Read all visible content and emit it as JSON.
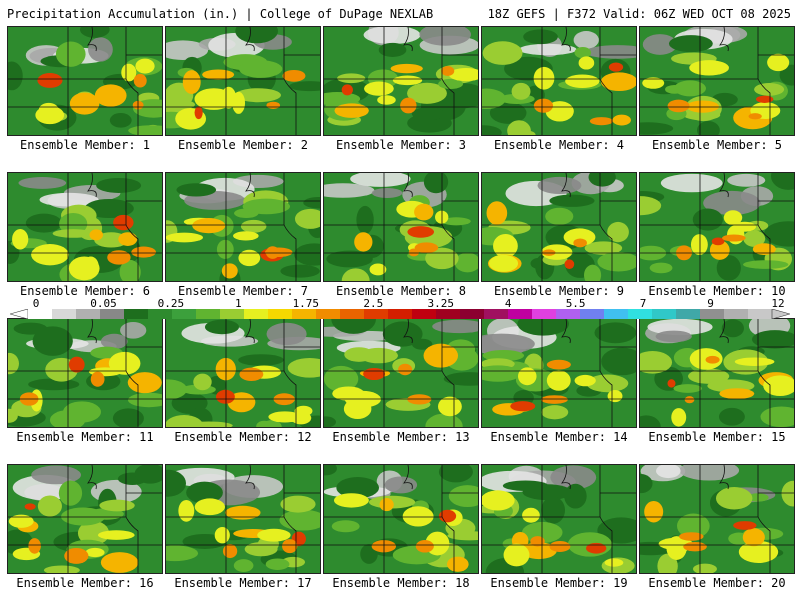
{
  "header": {
    "left": "Precipitation Accumulation (in.) | College of DuPage NEXLAB",
    "right": "18Z GEFS | F372 Valid: 06Z WED OCT 08 2025"
  },
  "colorbar": {
    "labels": [
      "0",
      "0.05",
      "0.25",
      "1",
      "1.75",
      "2.5",
      "3.25",
      "4",
      "5.5",
      "7",
      "9",
      "12"
    ],
    "colors": [
      "#ffffff",
      "#d8d8d8",
      "#b0b0b0",
      "#888888",
      "#1e6e1e",
      "#2e8b2e",
      "#3ca03c",
      "#60b430",
      "#9acd32",
      "#e6f020",
      "#f5d800",
      "#f5b400",
      "#f08c00",
      "#e86400",
      "#e03c00",
      "#d41e00",
      "#c00010",
      "#a00020",
      "#8c0030",
      "#a01060",
      "#c000a0",
      "#e040e0",
      "#b060f0",
      "#7080f0",
      "#40c0f0",
      "#30e0e0",
      "#30c8c8",
      "#40a8a8",
      "#909090",
      "#b0b0b0",
      "#c8c8c8"
    ]
  },
  "members": [
    {
      "label": "Ensemble Member: 1"
    },
    {
      "label": "Ensemble Member: 2"
    },
    {
      "label": "Ensemble Member: 3"
    },
    {
      "label": "Ensemble Member: 4"
    },
    {
      "label": "Ensemble Member: 5"
    },
    {
      "label": "Ensemble Member: 6"
    },
    {
      "label": "Ensemble Member: 7"
    },
    {
      "label": "Ensemble Member: 8"
    },
    {
      "label": "Ensemble Member: 9"
    },
    {
      "label": "Ensemble Member: 10"
    },
    {
      "label": "Ensemble Member: 11"
    },
    {
      "label": "Ensemble Member: 12"
    },
    {
      "label": "Ensemble Member: 13"
    },
    {
      "label": "Ensemble Member: 14"
    },
    {
      "label": "Ensemble Member: 15"
    },
    {
      "label": "Ensemble Member: 16"
    },
    {
      "label": "Ensemble Member: 17"
    },
    {
      "label": "Ensemble Member: 18"
    },
    {
      "label": "Ensemble Member: 19"
    },
    {
      "label": "Ensemble Member: 20"
    }
  ]
}
